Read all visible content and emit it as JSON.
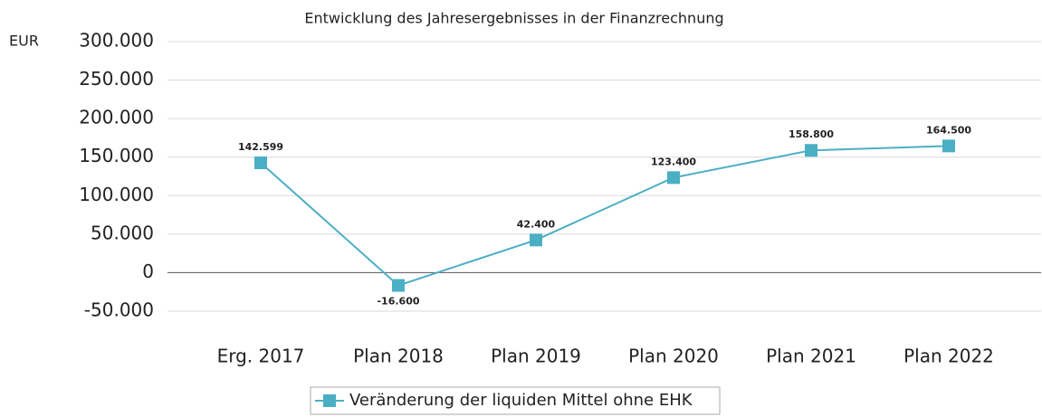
{
  "chart_data": {
    "type": "line",
    "title": "Entwicklung des Jahresergebnisses in der Finanzrechnung",
    "y_label": "EUR",
    "categories": [
      "Erg. 2017",
      "Plan 2018",
      "Plan 2019",
      "Plan 2020",
      "Plan 2021",
      "Plan 2022"
    ],
    "series": [
      {
        "name": "Veränderung der liquiden Mittel ohne EHK",
        "color": "#4bafc4",
        "values": [
          142599,
          -16600,
          42400,
          123400,
          158800,
          164500
        ],
        "value_labels": [
          "142.599",
          "-16.600",
          "42.400",
          "123.400",
          "158.800",
          "164.500"
        ]
      }
    ],
    "ylim": [
      -50000,
      300000
    ],
    "yticks": [
      {
        "value": -50000,
        "label": "-50.000"
      },
      0,
      {
        "value": 50000,
        "label": "50.000"
      },
      {
        "value": 100000,
        "label": "100.000"
      },
      {
        "value": 150000,
        "label": "150.000"
      },
      {
        "value": 200000,
        "label": "200.000"
      },
      {
        "value": 250000,
        "label": "250.000"
      },
      {
        "value": 300000,
        "label": "300.000"
      }
    ],
    "grid": true,
    "legend": "bottom"
  }
}
